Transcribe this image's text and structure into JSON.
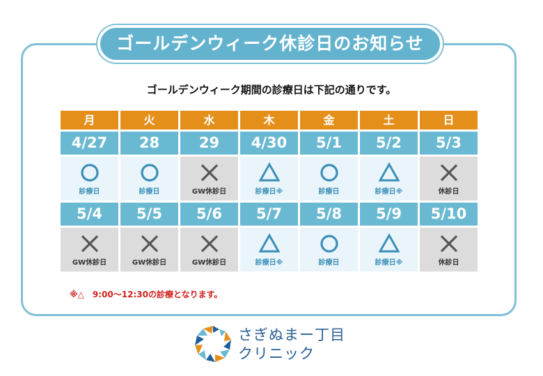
{
  "title": "ゴールデンウィーク休診日のお知らせ",
  "subtitle": "ゴールデンウィーク期間の診療日は下記の通りです。",
  "weekdays": [
    "月",
    "火",
    "水",
    "木",
    "金",
    "土",
    "日"
  ],
  "weeks": [
    [
      {
        "date": "4/27",
        "mark": "circle",
        "label": "診療日"
      },
      {
        "date": "28",
        "mark": "circle",
        "label": "診療日"
      },
      {
        "date": "29",
        "mark": "cross",
        "label": "GW休診日"
      },
      {
        "date": "4/30",
        "mark": "triangle",
        "label": "診療日※"
      },
      {
        "date": "5/1",
        "mark": "circle",
        "label": "診療日"
      },
      {
        "date": "5/2",
        "mark": "triangle",
        "label": "診療日※"
      },
      {
        "date": "5/3",
        "mark": "cross",
        "label": "休診日"
      }
    ],
    [
      {
        "date": "5/4",
        "mark": "cross",
        "label": "GW休診日"
      },
      {
        "date": "5/5",
        "mark": "cross",
        "label": "GW休診日"
      },
      {
        "date": "5/6",
        "mark": "cross",
        "label": "GW休診日"
      },
      {
        "date": "5/7",
        "mark": "triangle",
        "label": "診療日※"
      },
      {
        "date": "5/8",
        "mark": "circle",
        "label": "診療日"
      },
      {
        "date": "5/9",
        "mark": "triangle",
        "label": "診療日※"
      },
      {
        "date": "5/10",
        "mark": "cross",
        "label": "休診日"
      }
    ]
  ],
  "note": "※△　9:00〜12:30の診療となります。",
  "clinic": {
    "line1": "さぎぬまー丁目",
    "line2": "クリニック"
  },
  "colors": {
    "header": "#e58f1b",
    "date": "#6ab9d2",
    "open_bg": "#eaf5fb",
    "closed_bg": "#dcdcdc",
    "mark_open": "#3b8fb8",
    "mark_closed": "#555555",
    "note": "#d0201b",
    "frame": "#7fbfd5"
  }
}
